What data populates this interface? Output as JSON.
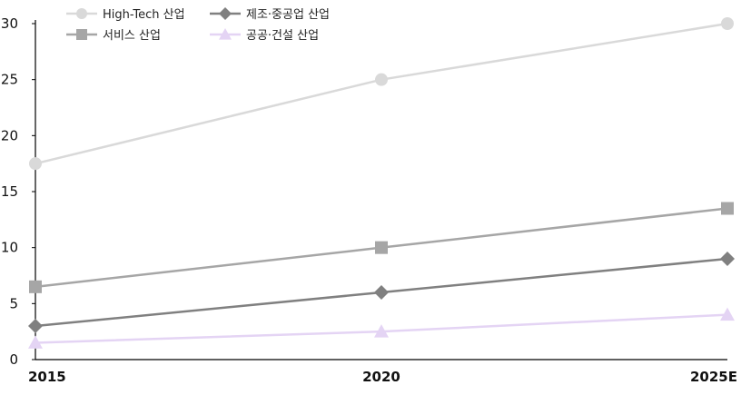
{
  "chart_data": {
    "type": "line",
    "categories": [
      "2015",
      "2020",
      "2025E"
    ],
    "ylim": [
      0,
      30
    ],
    "yticks": [
      "0",
      "5",
      "10",
      "15",
      "20",
      "25",
      "30"
    ],
    "grid": false,
    "legend_position": "top-left",
    "series": [
      {
        "name": "High-Tech 산업",
        "values": [
          17.5,
          25,
          30
        ],
        "color": "#d9d9d9",
        "marker": "circle"
      },
      {
        "name": "제조·중공업 산업",
        "values": [
          3,
          6,
          9
        ],
        "color": "#808080",
        "marker": "diamond"
      },
      {
        "name": "서비스 산업",
        "values": [
          6.5,
          10,
          13.5
        ],
        "color": "#a6a6a6",
        "marker": "square"
      },
      {
        "name": "공공·건설 산업",
        "values": [
          1.5,
          2.5,
          4
        ],
        "color": "#e4d4f4",
        "marker": "triangle"
      }
    ]
  }
}
